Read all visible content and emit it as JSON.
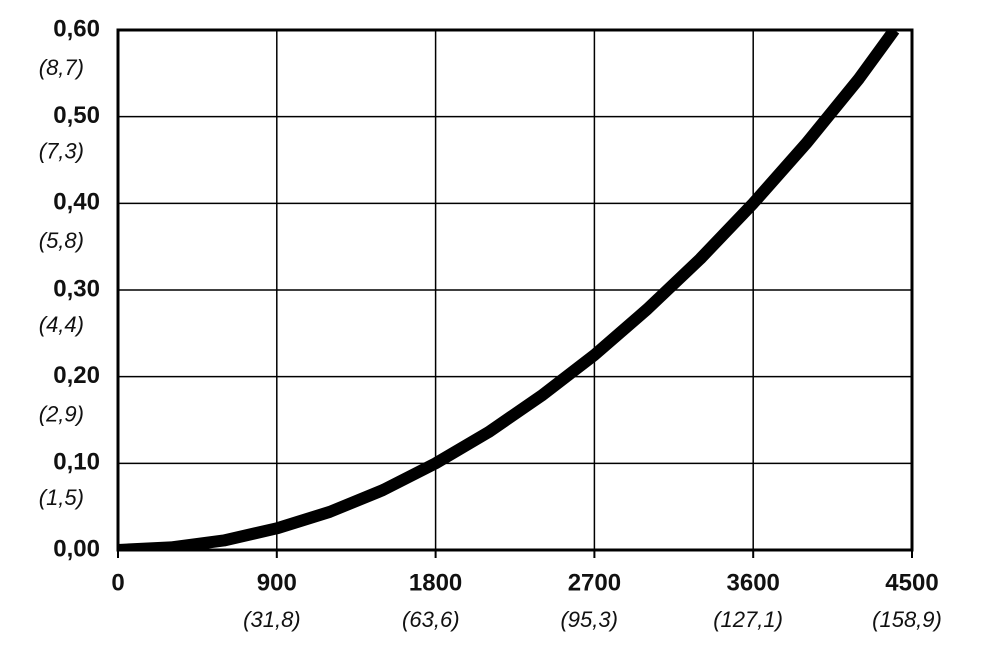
{
  "chart_data": {
    "type": "line",
    "x": [
      0,
      300,
      600,
      900,
      1200,
      1500,
      1800,
      2100,
      2400,
      2700,
      3000,
      3300,
      3600,
      3900,
      4200,
      4400
    ],
    "series": [
      {
        "color": "#000000",
        "values": [
          0,
          0.003,
          0.011,
          0.025,
          0.044,
          0.069,
          0.1,
          0.136,
          0.178,
          0.225,
          0.278,
          0.336,
          0.4,
          0.469,
          0.544,
          0.6
        ]
      }
    ],
    "xlim": [
      0,
      4500
    ],
    "xticks": [
      0,
      900,
      1800,
      2700,
      3600,
      4500
    ],
    "x2lim": [
      0,
      158.9
    ],
    "x2ticks": [
      {
        "value": 31.8,
        "label": "(31,8)"
      },
      {
        "value": 63.6,
        "label": "(63,6)"
      },
      {
        "value": 95.3,
        "label": "(95,3)"
      },
      {
        "value": 127.1,
        "label": "(127,1)"
      },
      {
        "value": 158.9,
        "label": "(158,9)"
      }
    ],
    "ylim": [
      0,
      0.6
    ],
    "yticks": [
      {
        "value": 0,
        "label": "0,00"
      },
      {
        "value": 0.1,
        "label": "0,10"
      },
      {
        "value": 0.2,
        "label": "0,20"
      },
      {
        "value": 0.3,
        "label": "0,30"
      },
      {
        "value": 0.4,
        "label": "0,40"
      },
      {
        "value": 0.5,
        "label": "0,50"
      },
      {
        "value": 0.6,
        "label": "0,60"
      }
    ],
    "y2lim": [
      0,
      8.7
    ],
    "y2ticks": [
      {
        "value": 1.5,
        "label": "(1,5)"
      },
      {
        "value": 2.9,
        "label": "(2,9)"
      },
      {
        "value": 4.4,
        "label": "(4,4)"
      },
      {
        "value": 5.8,
        "label": "(5,8)"
      },
      {
        "value": 7.3,
        "label": "(7,3)"
      },
      {
        "value": 8.7,
        "label": "(8,7)"
      }
    ],
    "grid": true
  }
}
